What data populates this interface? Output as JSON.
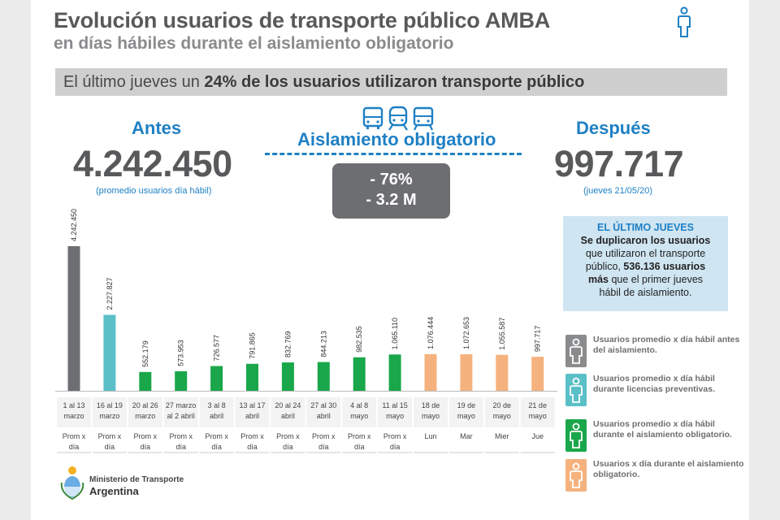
{
  "header": {
    "title": "Evolución usuarios de transporte público AMBA",
    "subtitle": "en días hábiles durante el aislamiento obligatorio"
  },
  "banner": {
    "prefix": "El último jueves un ",
    "highlight": "24% de los usuarios utilizaron transporte público"
  },
  "antes": {
    "label": "Antes",
    "value": "4.242.450",
    "note": "(promedio usuarios día hábil)"
  },
  "aislamiento": {
    "label": "Aislamiento obligatorio",
    "icons": [
      "bus-icon",
      "train-icon",
      "subway-icon"
    ]
  },
  "despues": {
    "label": "Después",
    "value": "997.717",
    "note": "(jueves 21/05/20)"
  },
  "delta": {
    "percent": "- 76%",
    "millions": "- 3.2 M"
  },
  "info_box": {
    "head": "EL ÚLTIMO JUEVES",
    "line1": "Se duplicaron los usuarios",
    "line2": "que utilizaron el transporte",
    "line3_prefix": "público, ",
    "line3_bold": "536.136 usuarios",
    "line4_bold": "más",
    "line4_rest": " que el primer jueves",
    "line5": "hábil de aislamiento."
  },
  "legend": [
    {
      "text": "Usuarios promedio x día hábil antes del aislamiento.",
      "color": "#8a8b8d"
    },
    {
      "text": "Usuarios promedio x día hábil durante licencias preventivas.",
      "color": "#5bbfc7"
    },
    {
      "text": "Usuarios promedio x día hábil durante el aislamiento obligatorio.",
      "color": "#1aa64a"
    },
    {
      "text": "Usuarios x día durante el aislamiento obligatorio.",
      "color": "#f6b27e"
    }
  ],
  "footer": {
    "ministry": "Ministerio de Transporte",
    "country": "Argentina"
  },
  "chart_data": {
    "type": "bar",
    "categories": [
      "1 al 13 marzo",
      "16 al 19 marzo",
      "20 al 26 marzo",
      "27 marzo al 2 abril",
      "3 al 8 abril",
      "13 al 17 abril",
      "20 al 24 abril",
      "27 al 30 abril",
      "4 al 8 mayo",
      "11 al 15 mayo",
      "18 de mayo",
      "19 de mayo",
      "20 de mayo",
      "21 de mayo"
    ],
    "category_lines": [
      [
        "1 al 13",
        "marzo"
      ],
      [
        "16 al 19",
        "marzo"
      ],
      [
        "20 al 26",
        "marzo"
      ],
      [
        "27 marzo",
        "al 2 abril"
      ],
      [
        "3 al 8",
        "abril"
      ],
      [
        "13 al 17",
        "abril"
      ],
      [
        "20 al 24",
        "abril"
      ],
      [
        "27 al 30",
        "abril"
      ],
      [
        "4 al 8",
        "mayo"
      ],
      [
        "11 al 15",
        "mayo"
      ],
      [
        "18 de",
        "mayo"
      ],
      [
        "19 de",
        "mayo"
      ],
      [
        "20 de",
        "mayo"
      ],
      [
        "21 de",
        "mayo"
      ]
    ],
    "sublabels": [
      [
        "Prom x",
        "día"
      ],
      [
        "Prom x",
        "día"
      ],
      [
        "Prom x",
        "día"
      ],
      [
        "Prom x",
        "día"
      ],
      [
        "Prom x",
        "día"
      ],
      [
        "Prom x",
        "día"
      ],
      [
        "Prom x",
        "día"
      ],
      [
        "Prom x",
        "día"
      ],
      [
        "Prom x",
        "día"
      ],
      [
        "Prom x",
        "día"
      ],
      [
        "Lun"
      ],
      [
        "Mar"
      ],
      [
        "Mier"
      ],
      [
        "Jue"
      ]
    ],
    "values": [
      4242450,
      2227827,
      552179,
      573953,
      726577,
      791865,
      832769,
      844213,
      982535,
      1065110,
      1076444,
      1072653,
      1055587,
      997717
    ],
    "value_labels": [
      "4.242.450",
      "2.227.827",
      "552.179",
      "573.953",
      "726.577",
      "791.865",
      "832.769",
      "844.213",
      "982.535",
      "1.065.110",
      "1.076.444",
      "1.072.653",
      "1.055.587",
      "997.717"
    ],
    "groups": [
      0,
      1,
      2,
      2,
      2,
      2,
      2,
      2,
      2,
      2,
      3,
      3,
      3,
      3
    ],
    "group_colors": [
      "#6d6e71",
      "#5bbfc7",
      "#1aa64a",
      "#f6b27e"
    ],
    "ylim": [
      0,
      4242450
    ]
  }
}
